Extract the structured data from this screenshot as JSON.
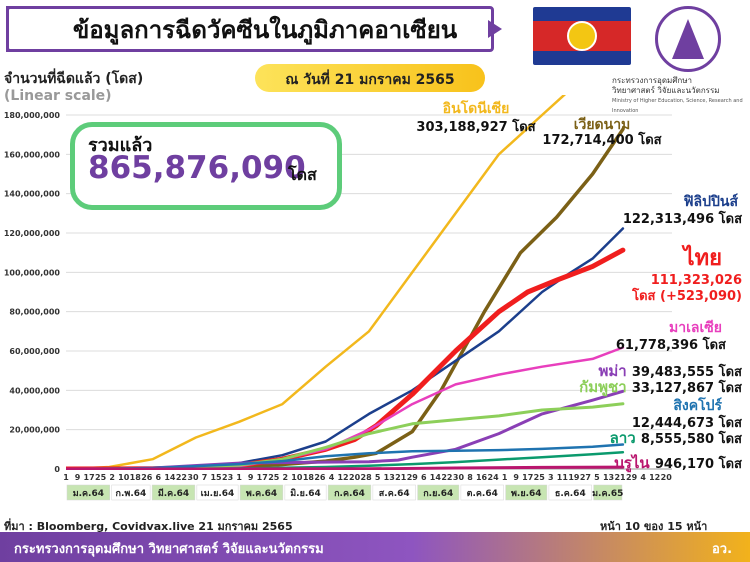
{
  "header": {
    "title": "ข้อมูลการฉีดวัคซีนในภูมิภาคอาเซียน",
    "ministry_name_th": "กระทรวงการอุดมศึกษา\nวิทยาศาสตร์ วิจัยและนวัตกรรม",
    "ministry_name_en": "Ministry of Higher Education, Science, Research and Innovation"
  },
  "y_axis_title": "จำนวนที่ฉีดแล้ว (โดส)",
  "y_axis_scale": "(Linear scale)",
  "date_badge": "ณ วันที่ 21 มกราคม 2565",
  "total": {
    "label": "รวมแล้ว",
    "value": "865,876,090",
    "unit": "โดส"
  },
  "chart_data": {
    "type": "line",
    "ylim": [
      0,
      180000000
    ],
    "y_ticks": [
      "0",
      "20,000,000",
      "40,000,000",
      "60,000,000",
      "80,000,000",
      "100,000,000",
      "120,000,000",
      "140,000,000",
      "160,000,000",
      "180,000,000"
    ],
    "x_day_ticks": [
      {
        "label": "1",
        "t": 0
      },
      {
        "label": "9",
        "t": 8
      },
      {
        "label": "17",
        "t": 16
      },
      {
        "label": "25",
        "t": 24
      },
      {
        "label": "2",
        "t": 32
      },
      {
        "label": "10",
        "t": 40
      },
      {
        "label": "18",
        "t": 48
      },
      {
        "label": "26",
        "t": 56
      },
      {
        "label": "6",
        "t": 64
      },
      {
        "label": "14",
        "t": 72
      },
      {
        "label": "22",
        "t": 80
      },
      {
        "label": "30",
        "t": 88
      },
      {
        "label": "7",
        "t": 96
      },
      {
        "label": "15",
        "t": 104
      },
      {
        "label": "23",
        "t": 112
      },
      {
        "label": "1",
        "t": 120
      },
      {
        "label": "9",
        "t": 128
      },
      {
        "label": "17",
        "t": 136
      },
      {
        "label": "25",
        "t": 144
      },
      {
        "label": "2",
        "t": 152
      },
      {
        "label": "10",
        "t": 160
      },
      {
        "label": "18",
        "t": 168
      },
      {
        "label": "26",
        "t": 176
      },
      {
        "label": "4",
        "t": 184
      },
      {
        "label": "12",
        "t": 192
      },
      {
        "label": "20",
        "t": 200
      },
      {
        "label": "28",
        "t": 208
      },
      {
        "label": "5",
        "t": 216
      },
      {
        "label": "13",
        "t": 224
      },
      {
        "label": "21",
        "t": 232
      },
      {
        "label": "29",
        "t": 240
      },
      {
        "label": "6",
        "t": 248
      },
      {
        "label": "14",
        "t": 256
      },
      {
        "label": "22",
        "t": 264
      },
      {
        "label": "30",
        "t": 272
      },
      {
        "label": "8",
        "t": 280
      },
      {
        "label": "16",
        "t": 288
      },
      {
        "label": "24",
        "t": 296
      },
      {
        "label": "1",
        "t": 304
      },
      {
        "label": "9",
        "t": 312
      },
      {
        "label": "17",
        "t": 320
      },
      {
        "label": "25",
        "t": 328
      },
      {
        "label": "3",
        "t": 336
      },
      {
        "label": "11",
        "t": 344
      },
      {
        "label": "19",
        "t": 352
      },
      {
        "label": "27",
        "t": 360
      },
      {
        "label": "5",
        "t": 368
      },
      {
        "label": "13",
        "t": 376
      },
      {
        "label": "21",
        "t": 384
      },
      {
        "label": "29",
        "t": 392
      },
      {
        "label": "4",
        "t": 400
      },
      {
        "label": "12",
        "t": 408
      },
      {
        "label": "20",
        "t": 416
      }
    ],
    "x_month_ticks": [
      {
        "label": "ม.ค.64",
        "start": 0,
        "end": 31
      },
      {
        "label": "ก.พ.64",
        "start": 31,
        "end": 59
      },
      {
        "label": "มี.ค.64",
        "start": 59,
        "end": 90
      },
      {
        "label": "เม.ย.64",
        "start": 90,
        "end": 120
      },
      {
        "label": "พ.ค.64",
        "start": 120,
        "end": 151
      },
      {
        "label": "มิ.ย.64",
        "start": 151,
        "end": 181
      },
      {
        "label": "ก.ค.64",
        "start": 181,
        "end": 212
      },
      {
        "label": "ส.ค.64",
        "start": 212,
        "end": 243
      },
      {
        "label": "ก.ย.64",
        "start": 243,
        "end": 273
      },
      {
        "label": "ต.ค.64",
        "start": 273,
        "end": 304
      },
      {
        "label": "พ.ย.64",
        "start": 304,
        "end": 334
      },
      {
        "label": "ธ.ค.64",
        "start": 334,
        "end": 365
      },
      {
        "label": "ม.ค.65",
        "start": 365,
        "end": 386
      }
    ],
    "series": [
      {
        "name": "อินโดนีเซีย",
        "total": "303,188,927",
        "unit": "โดส",
        "color": "#f2b81d",
        "width": 2.5,
        "x": [
          0,
          30,
          60,
          90,
          120,
          150,
          180,
          210,
          240,
          270,
          300,
          330,
          345,
          358
        ],
        "y": [
          0,
          1000000,
          5000000,
          16000000,
          24000000,
          33000000,
          52000000,
          70000000,
          100000000,
          130000000,
          160000000,
          180000000,
          190000000,
          198000000
        ]
      },
      {
        "name": "เวียดนาม",
        "total": "172,714,400",
        "unit": "โดส",
        "color": "#7b6016",
        "width": 3.5,
        "x": [
          0,
          60,
          90,
          120,
          150,
          180,
          200,
          215,
          240,
          260,
          290,
          315,
          340,
          365,
          386
        ],
        "y": [
          0,
          50000,
          200000,
          1000000,
          2300000,
          4000000,
          6000000,
          8000000,
          19000000,
          40000000,
          80000000,
          110000000,
          128000000,
          150000000,
          172714400
        ]
      },
      {
        "name": "ฟิลิปปินส์",
        "total": "122,313,496",
        "unit": "โดส",
        "color": "#1c3f8c",
        "width": 2.5,
        "x": [
          0,
          60,
          90,
          120,
          150,
          180,
          210,
          240,
          270,
          300,
          330,
          350,
          365,
          386
        ],
        "y": [
          0,
          100000,
          1000000,
          3000000,
          7000000,
          14000000,
          28000000,
          40000000,
          55000000,
          70000000,
          90000000,
          100000000,
          107000000,
          122313496
        ]
      },
      {
        "name": "ไทย",
        "total": "111,323,026",
        "unit": "โดส",
        "note": "(+523,090)",
        "color": "#f01e1e",
        "width": 5,
        "x": [
          0,
          60,
          90,
          120,
          150,
          180,
          200,
          215,
          240,
          270,
          300,
          320,
          340,
          365,
          386
        ],
        "y": [
          0,
          100000,
          600000,
          1800000,
          5000000,
          10000000,
          15000000,
          22000000,
          38000000,
          60000000,
          80000000,
          90000000,
          96000000,
          103000000,
          111323026
        ]
      },
      {
        "name": "มาเลเซีย",
        "total": "61,778,396",
        "unit": "โดส",
        "color": "#e83fbd",
        "width": 2.5,
        "x": [
          0,
          60,
          90,
          120,
          150,
          180,
          210,
          240,
          270,
          300,
          330,
          365,
          386
        ],
        "y": [
          0,
          100000,
          300000,
          1500000,
          5000000,
          10000000,
          20000000,
          33000000,
          43000000,
          48000000,
          52000000,
          56000000,
          61778396
        ]
      },
      {
        "name": "พม่า",
        "total": "39,483,555",
        "unit": "โดส",
        "color": "#8a3fb5",
        "width": 3,
        "x": [
          0,
          40,
          60,
          120,
          180,
          210,
          230,
          240,
          270,
          300,
          330,
          365,
          386
        ],
        "y": [
          0,
          100000,
          500000,
          3000000,
          3500000,
          3700000,
          4500000,
          6000000,
          10000000,
          18000000,
          28000000,
          35000000,
          39483555
        ]
      },
      {
        "name": "กัมพูชา",
        "total": "33,127,867",
        "unit": "โดส",
        "color": "#8dcf5a",
        "width": 3,
        "x": [
          0,
          40,
          60,
          90,
          120,
          150,
          180,
          210,
          240,
          270,
          300,
          330,
          365,
          386
        ],
        "y": [
          0,
          50000,
          300000,
          1000000,
          2000000,
          5000000,
          11000000,
          18000000,
          23000000,
          25000000,
          27000000,
          30000000,
          31500000,
          33127867
        ]
      },
      {
        "name": "สิงคโปร์",
        "total": "12,444,673",
        "unit": "โดส",
        "color": "#1f73b0",
        "width": 2.5,
        "x": [
          0,
          30,
          60,
          90,
          120,
          150,
          180,
          210,
          240,
          270,
          300,
          330,
          365,
          386
        ],
        "y": [
          0,
          200000,
          500000,
          1500000,
          2500000,
          4000000,
          6500000,
          8000000,
          9000000,
          9300000,
          9600000,
          10200000,
          11300000,
          12444673
        ]
      },
      {
        "name": "ลาว",
        "total": "8,555,580",
        "unit": "โดส",
        "color": "#0b9a6d",
        "width": 2.5,
        "x": [
          0,
          60,
          90,
          120,
          150,
          180,
          210,
          240,
          270,
          300,
          330,
          365,
          386
        ],
        "y": [
          0,
          50000,
          100000,
          300000,
          600000,
          1000000,
          1700000,
          2500000,
          3500000,
          4800000,
          6000000,
          7500000,
          8555580
        ]
      },
      {
        "name": "บรูไน",
        "total": "946,170",
        "unit": "โดส",
        "color": "#b9166e",
        "width": 3,
        "x": [
          0,
          90,
          150,
          210,
          270,
          330,
          386
        ],
        "y": [
          0,
          10000,
          40000,
          120000,
          500000,
          800000,
          946170
        ]
      }
    ]
  },
  "source": "ที่มา : Bloomberg, Covidvax.live 21 มกราคม 2565",
  "page_label": "หน้า 10 ของ 15 หน้า",
  "footer": {
    "ministry": "กระทรวงการอุดมศึกษา วิทยาศาสตร์ วิจัยและนวัตกรรม",
    "short": "อว."
  }
}
